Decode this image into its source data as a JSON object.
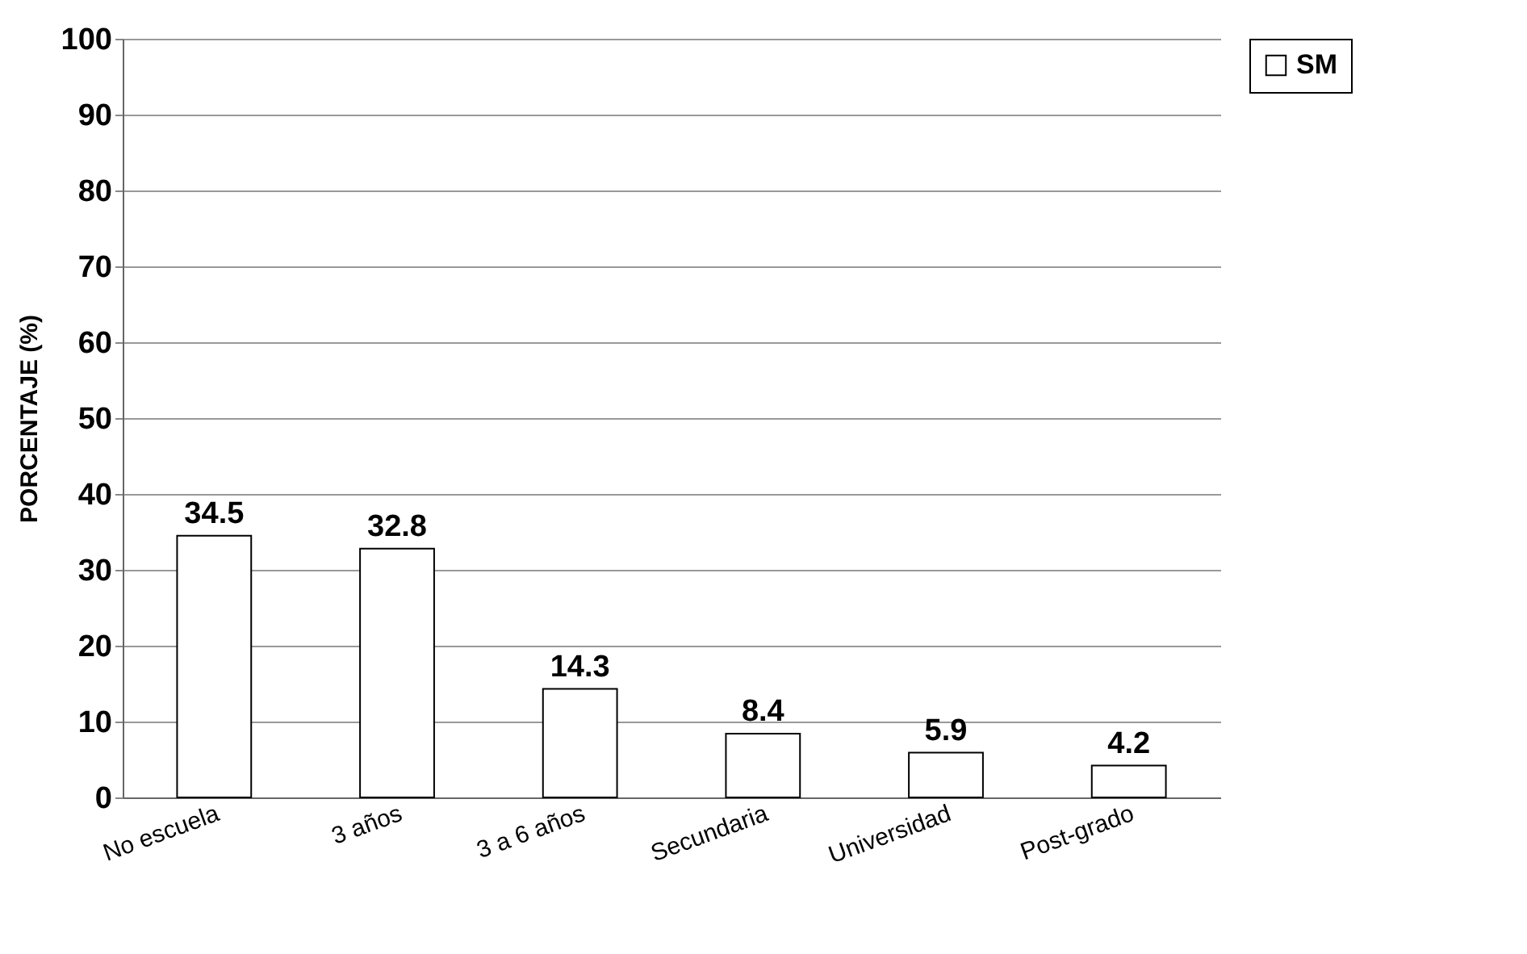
{
  "chart_data": {
    "type": "bar",
    "ylabel": "PORCENTAJE (%)",
    "categories": [
      "No escuela",
      "3 años",
      "3 a 6 años",
      "Secundaria",
      "Universidad",
      "Post-grado"
    ],
    "series": [
      {
        "name": "SM",
        "color": "#ffffff",
        "values": [
          34.5,
          32.8,
          14.3,
          8.4,
          5.9,
          4.2
        ]
      }
    ],
    "ylim": [
      0,
      100
    ],
    "yticks": [
      0,
      10,
      20,
      30,
      40,
      50,
      60,
      70,
      80,
      90,
      100
    ],
    "grid": "y",
    "legend": "right",
    "data_labels": true
  }
}
